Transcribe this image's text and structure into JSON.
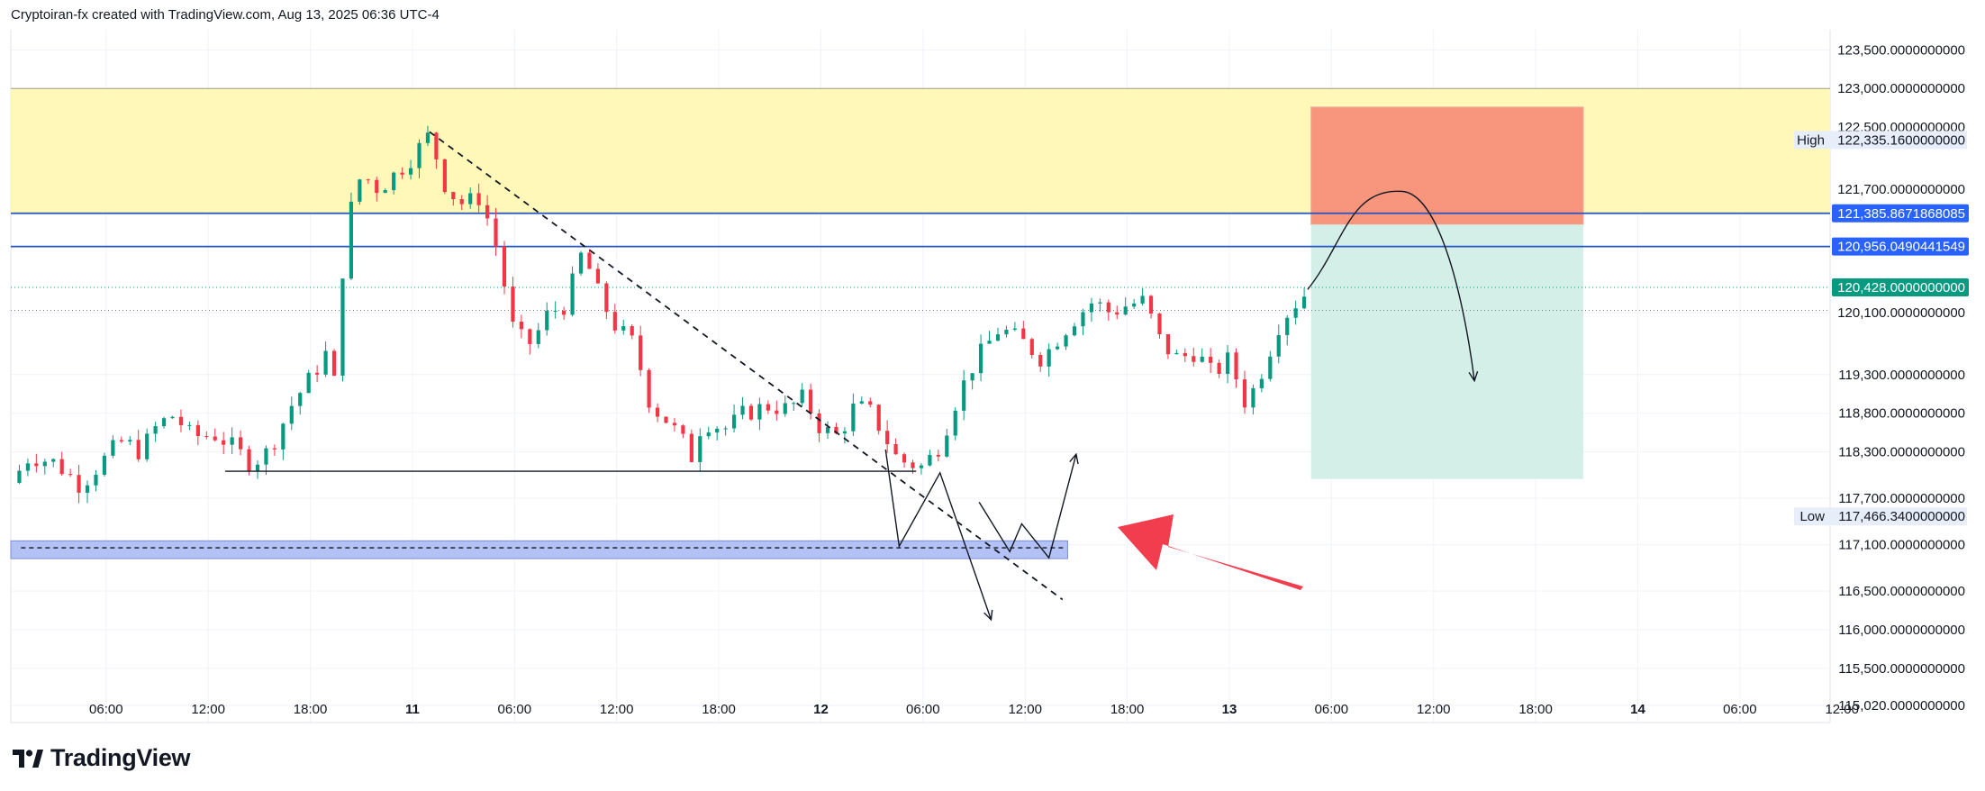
{
  "header": {
    "caption": "Cryptoiran-fx created with TradingView.com, Aug 13, 2025 06:36 UTC-4"
  },
  "brand": {
    "logo_text": "TradingView",
    "logo_icon": "tradingview-logo-icon"
  },
  "colors": {
    "up": "#089981",
    "down": "#f23645",
    "grid": "#f0f3fa",
    "supply_zone": "#fff8b8",
    "demand_zone": "#b3c1f5",
    "stop_zone": "#f7957d",
    "target_zone": "#d4efe8",
    "level_line": "#2454c4",
    "level_tag": "#2962ff",
    "price_tag": "#089981",
    "arrow": "#f23d4f"
  },
  "chart_data": {
    "type": "candlestick",
    "x_axis": {
      "ticks": [
        "06:00",
        "12:00",
        "18:00",
        "11",
        "06:00",
        "12:00",
        "18:00",
        "12",
        "06:00",
        "12:00",
        "18:00",
        "13",
        "06:00",
        "12:00",
        "18:00",
        "14",
        "06:00",
        "12:00"
      ],
      "tick_hours": [
        6,
        12,
        18,
        24,
        30,
        36,
        42,
        48,
        54,
        60,
        66,
        72,
        78,
        84,
        90,
        96,
        102,
        108
      ],
      "range_hours": [
        0.4,
        107.3
      ]
    },
    "y_axis": {
      "ticks": [
        "123,500.0000000000",
        "123,000.0000000000",
        "122,500.0000000000",
        "121,700.0000000000",
        "120,100.0000000000",
        "119,300.0000000000",
        "118,800.0000000000",
        "118,300.0000000000",
        "117,700.0000000000",
        "117,100.0000000000",
        "116,500.0000000000",
        "116,000.0000000000",
        "115,500.0000000000",
        "115,020.0000000000"
      ],
      "tick_values": [
        123500,
        123000,
        122500,
        121700,
        120100,
        119300,
        118800,
        118300,
        117700,
        117100,
        116500,
        116000,
        115500,
        115020
      ],
      "range": [
        114800,
        123760
      ]
    },
    "price_tags": [
      {
        "name": "high",
        "label": "High",
        "value_text": "122,335.1600000000",
        "value": 122335.16,
        "style": "light"
      },
      {
        "name": "level-upper",
        "label": "",
        "value_text": "121,385.8671868085",
        "value": 121385.8671868085,
        "style": "blue"
      },
      {
        "name": "level-lower",
        "label": "",
        "value_text": "120,956.0490441549",
        "value": 120956.0490441549,
        "style": "blue"
      },
      {
        "name": "last-price",
        "label": "",
        "value_text": "120,428.0000000000",
        "value": 120428,
        "style": "green"
      },
      {
        "name": "low",
        "label": "Low",
        "value_text": "117,466.3400000000",
        "value": 117466.34,
        "style": "light"
      }
    ],
    "zones": [
      {
        "name": "supply-zone",
        "x_from": 0.4,
        "x_to": 107.3,
        "y_from": 121385.87,
        "y_to": 123000
      },
      {
        "name": "demand-zone",
        "x_from": 0.4,
        "x_to": 62.5,
        "y_from": 116920,
        "y_to": 117150
      },
      {
        "name": "stop-loss-zone",
        "x_from": 76.8,
        "x_to": 92.8,
        "y_from": 121240,
        "y_to": 122760
      },
      {
        "name": "take-profit-zone",
        "x_from": 76.8,
        "x_to": 92.8,
        "y_from": 117950,
        "y_to": 121240
      }
    ],
    "lines": [
      {
        "name": "resistance-line-upper",
        "value": 121385.87
      },
      {
        "name": "resistance-line-lower",
        "value": 120956.05
      },
      {
        "name": "last-price-line",
        "value": 120428
      },
      {
        "name": "dotted-level-line",
        "value": 120130
      }
    ],
    "drawings": [
      {
        "name": "trendline-dashed",
        "dash": true,
        "points": [
          [
            25.0,
            122440
          ],
          [
            62.2,
            116390
          ]
        ]
      },
      {
        "name": "support-horizontal",
        "dash": false,
        "points": [
          [
            13.0,
            118050
          ],
          [
            53.6,
            118050
          ]
        ]
      },
      {
        "name": "demand-midline-dashed",
        "dash": true,
        "points": [
          [
            1.0,
            117060
          ],
          [
            62.3,
            117060
          ]
        ]
      },
      {
        "name": "projection-path-a",
        "dash": false,
        "points": [
          [
            51.8,
            118330
          ],
          [
            52.6,
            117080
          ],
          [
            55.0,
            118030
          ],
          [
            58.0,
            116130
          ]
        ]
      },
      {
        "name": "projection-path-b",
        "dash": false,
        "points": [
          [
            57.3,
            117650
          ],
          [
            59.1,
            117010
          ],
          [
            59.8,
            117370
          ],
          [
            61.4,
            116930
          ],
          [
            63.0,
            118270
          ]
        ]
      },
      {
        "name": "curve-projection",
        "dash": false,
        "curve": true,
        "points": [
          [
            76.6,
            120400
          ],
          [
            82.0,
            121670
          ],
          [
            86.4,
            119220
          ]
        ]
      }
    ],
    "close_anchors": [
      [
        0.4,
        117900
      ],
      [
        1.5,
        118250
      ],
      [
        3.0,
        118160
      ],
      [
        4.5,
        117870
      ],
      [
        6.5,
        118350
      ],
      [
        7.0,
        118440
      ],
      [
        8.0,
        118300
      ],
      [
        9.0,
        118640
      ],
      [
        10.0,
        118780
      ],
      [
        11.0,
        118500
      ],
      [
        12.5,
        118520
      ],
      [
        13.5,
        118350
      ],
      [
        14.5,
        118150
      ],
      [
        15.5,
        118300
      ],
      [
        16.0,
        118500
      ],
      [
        17.0,
        118950
      ],
      [
        18.0,
        119250
      ],
      [
        19.0,
        119600
      ],
      [
        19.4,
        119200
      ],
      [
        19.6,
        120000
      ],
      [
        20.2,
        121300
      ],
      [
        21.0,
        121900
      ],
      [
        22.0,
        121700
      ],
      [
        23.0,
        121900
      ],
      [
        24.0,
        122120
      ],
      [
        25.0,
        122400
      ],
      [
        26.0,
        121700
      ],
      [
        27.0,
        121500
      ],
      [
        28.0,
        121600
      ],
      [
        29.0,
        120900
      ],
      [
        30.0,
        119800
      ],
      [
        31.0,
        119700
      ],
      [
        32.0,
        120100
      ],
      [
        33.0,
        120200
      ],
      [
        34.0,
        120900
      ],
      [
        35.0,
        120300
      ],
      [
        36.0,
        119900
      ],
      [
        37.0,
        119700
      ],
      [
        38.0,
        118900
      ],
      [
        39.0,
        118700
      ],
      [
        40.0,
        118400
      ],
      [
        40.5,
        118200
      ],
      [
        41.0,
        118700
      ],
      [
        42.5,
        118600
      ],
      [
        43.5,
        118800
      ],
      [
        45.0,
        118900
      ],
      [
        46.0,
        118850
      ],
      [
        47.0,
        119000
      ],
      [
        48.0,
        118600
      ],
      [
        49.0,
        118500
      ],
      [
        50.0,
        118900
      ],
      [
        51.0,
        118800
      ],
      [
        51.5,
        118600
      ],
      [
        52.5,
        118200
      ],
      [
        54.0,
        118100
      ],
      [
        55.0,
        118400
      ],
      [
        56.0,
        119000
      ],
      [
        57.0,
        119450
      ],
      [
        58.5,
        119900
      ],
      [
        60.0,
        119700
      ],
      [
        61.0,
        119500
      ],
      [
        62.0,
        119800
      ],
      [
        63.0,
        120050
      ],
      [
        64.0,
        120250
      ],
      [
        65.0,
        120100
      ],
      [
        66.0,
        120200
      ],
      [
        67.0,
        120250
      ],
      [
        68.0,
        119700
      ],
      [
        69.0,
        119500
      ],
      [
        70.0,
        119600
      ],
      [
        71.0,
        119300
      ],
      [
        72.0,
        119500
      ],
      [
        73.0,
        118900
      ],
      [
        74.0,
        119400
      ],
      [
        75.0,
        120000
      ],
      [
        76.0,
        120250
      ],
      [
        76.8,
        120420
      ]
    ],
    "trend_up_end": "120,428.0000000000"
  }
}
